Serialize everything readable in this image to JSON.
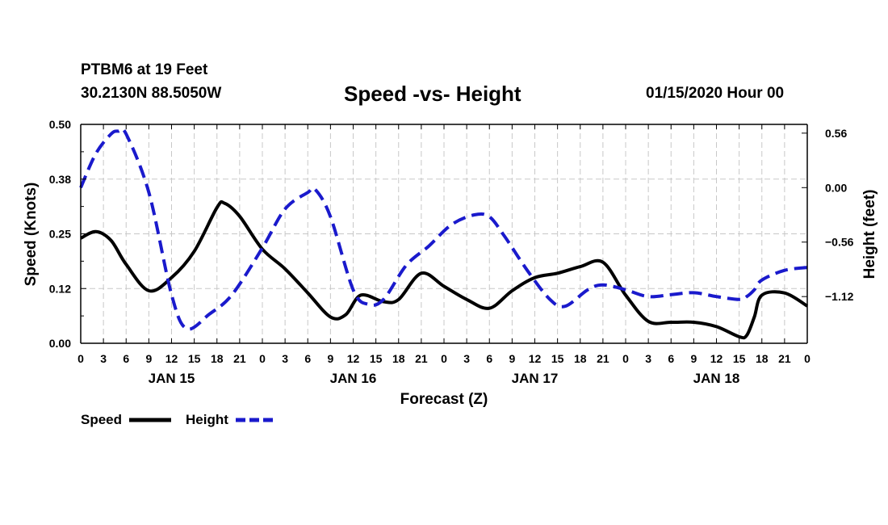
{
  "header": {
    "station": "PTBM6 at 19 Feet",
    "coordinates": "30.2130N 88.5050W",
    "title": "Speed -vs- Height",
    "date": "01/15/2020 Hour 00"
  },
  "colors": {
    "speed": "#000000",
    "height": "#1a1acc",
    "grid": "#c8c8c8"
  },
  "chart_data": {
    "type": "line",
    "title": "Speed -vs- Height",
    "xlabel": "Forecast (Z)",
    "ylabel": "Speed (Knots)",
    "y2label": "Height (feet)",
    "xlim": [
      0,
      96
    ],
    "ylim": [
      0,
      0.5
    ],
    "y2lim": [
      -1.6,
      0.65
    ],
    "yticks": [
      0,
      0.125,
      0.25,
      0.375,
      0.5
    ],
    "ytick_labels": [
      "0.00",
      "0.12",
      "0.25",
      "0.38",
      "0.50"
    ],
    "y2ticks": [
      0.56,
      0.0,
      -0.56,
      -1.12
    ],
    "y2tick_labels": [
      "0.56",
      "0.00",
      "-0.56",
      "-1.12"
    ],
    "xticks": [
      0,
      3,
      6,
      9,
      12,
      15,
      18,
      21,
      24,
      27,
      30,
      33,
      36,
      39,
      42,
      45,
      48,
      51,
      54,
      57,
      60,
      63,
      66,
      69,
      72,
      75,
      78,
      81,
      84,
      87,
      90,
      93,
      96
    ],
    "xtick_labels": [
      "0",
      "3",
      "6",
      "9",
      "12",
      "15",
      "18",
      "21",
      "0",
      "3",
      "6",
      "9",
      "12",
      "15",
      "18",
      "21",
      "0",
      "3",
      "6",
      "9",
      "12",
      "15",
      "18",
      "21",
      "0",
      "3",
      "6",
      "9",
      "12",
      "15",
      "18",
      "21",
      "0"
    ],
    "day_labels": [
      {
        "label": "JAN 15",
        "hour": 12
      },
      {
        "label": "JAN 16",
        "hour": 36
      },
      {
        "label": "JAN 17",
        "hour": 60
      },
      {
        "label": "JAN 18",
        "hour": 84
      }
    ],
    "grid": true,
    "legend_position": "bottom-left",
    "series": [
      {
        "name": "Speed",
        "axis": "left",
        "style": "solid",
        "hours": [
          0,
          2,
          4,
          6,
          9,
          12,
          15,
          18,
          19,
          21,
          24,
          27,
          30,
          33,
          35,
          37,
          40,
          42,
          45,
          48,
          51,
          54,
          57,
          60,
          63,
          66,
          69,
          72,
          75,
          78,
          81,
          84,
          87,
          88,
          89,
          90,
          93,
          96
        ],
        "values": [
          0.24,
          0.255,
          0.235,
          0.18,
          0.12,
          0.15,
          0.21,
          0.31,
          0.32,
          0.29,
          0.215,
          0.17,
          0.115,
          0.06,
          0.065,
          0.11,
          0.095,
          0.1,
          0.16,
          0.13,
          0.1,
          0.08,
          0.12,
          0.15,
          0.16,
          0.175,
          0.185,
          0.11,
          0.05,
          0.048,
          0.048,
          0.038,
          0.015,
          0.018,
          0.06,
          0.11,
          0.115,
          0.085
        ]
      },
      {
        "name": "Height",
        "axis": "right",
        "style": "dashed",
        "hours": [
          0,
          2,
          4,
          5,
          6,
          9,
          12,
          14,
          17,
          20,
          24,
          27,
          30,
          31,
          33,
          36,
          38,
          40,
          43,
          46,
          49,
          52,
          54,
          56,
          59,
          62,
          64,
          67,
          69,
          72,
          75,
          78,
          81,
          84,
          87,
          88,
          89,
          90,
          93,
          96
        ],
        "values": [
          0.0,
          0.35,
          0.55,
          0.58,
          0.55,
          -0.05,
          -1.1,
          -1.45,
          -1.3,
          -1.1,
          -0.62,
          -0.22,
          -0.05,
          -0.02,
          -0.3,
          -1.05,
          -1.2,
          -1.15,
          -0.8,
          -0.6,
          -0.38,
          -0.28,
          -0.3,
          -0.5,
          -0.85,
          -1.15,
          -1.22,
          -1.05,
          -1.0,
          -1.05,
          -1.12,
          -1.1,
          -1.08,
          -1.12,
          -1.15,
          -1.12,
          -1.05,
          -0.95,
          -0.85,
          -0.82
        ]
      }
    ]
  }
}
